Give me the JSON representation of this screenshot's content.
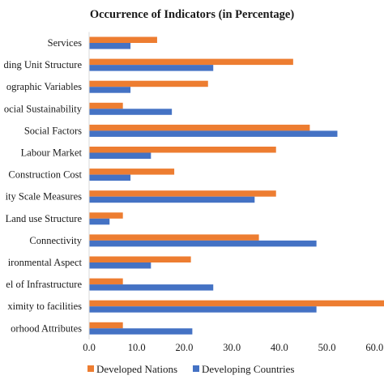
{
  "chart_data": {
    "type": "bar",
    "orientation": "horizontal",
    "title": "Occurrence of Indicators (in Percentage)",
    "categories": [
      "Services",
      "ding Unit Structure",
      "ographic Variables",
      "ocial Sustainability",
      "Social Factors",
      "Labour Market",
      "Construction Cost",
      "ity Scale Measures",
      "Land use Structure",
      "Connectivity",
      "ironmental Aspect",
      "el of Infrastructure",
      "ximity to facilities",
      "orhood Attributes"
    ],
    "series": [
      {
        "name": "Developed Nations",
        "color": "#ED7D31",
        "values": [
          14.3,
          42.9,
          25.0,
          7.1,
          46.4,
          39.3,
          17.9,
          39.3,
          7.1,
          35.7,
          21.4,
          7.1,
          64.3,
          7.1
        ]
      },
      {
        "name": "Developing Countries",
        "color": "#4472C4",
        "values": [
          8.7,
          26.1,
          8.7,
          17.4,
          52.2,
          13.0,
          8.7,
          34.8,
          4.3,
          47.8,
          13.0,
          26.1,
          47.8,
          21.7
        ]
      }
    ],
    "x_ticks": [
      "0.0",
      "10.0",
      "20.0",
      "30.0",
      "40.0",
      "50.0",
      "60.0"
    ],
    "xlim": [
      0,
      62
    ],
    "grid": false,
    "legend_position": "bottom"
  }
}
